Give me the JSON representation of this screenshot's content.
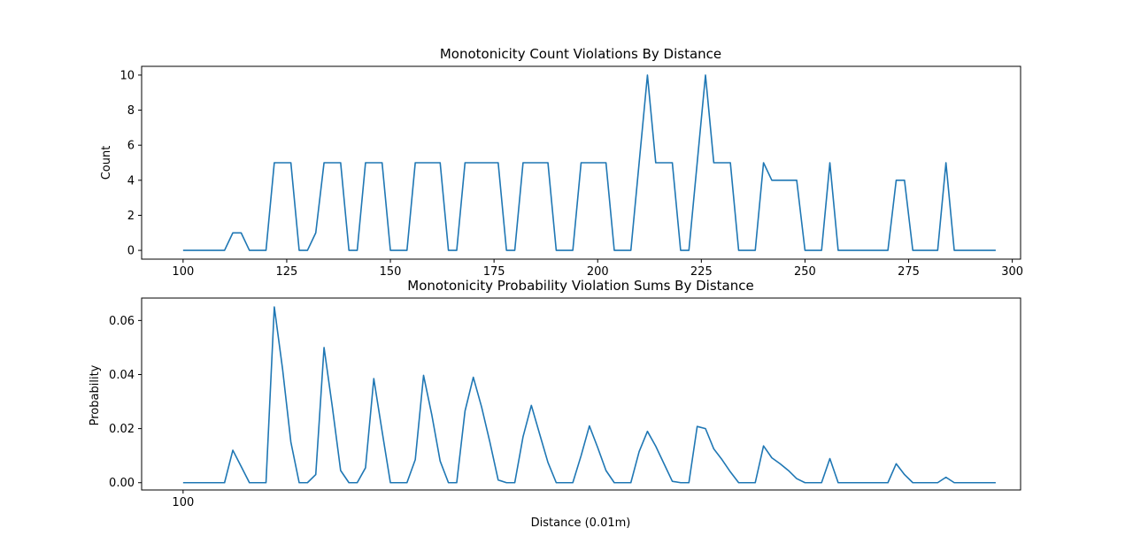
{
  "chart_data": [
    {
      "type": "line",
      "title": "Monotonicity Count Violations By Distance",
      "xlabel": "",
      "ylabel": "Count",
      "xlim": [
        90,
        302
      ],
      "ylim": [
        -0.5,
        10.5
      ],
      "xticks": [
        100,
        125,
        150,
        175,
        200,
        225,
        250,
        275,
        300
      ],
      "yticks": [
        0,
        2,
        4,
        6,
        8,
        10
      ],
      "ytick_labels": [
        "0",
        "2",
        "4",
        "6",
        "8",
        "10"
      ],
      "color": "#1f77b4",
      "series": [
        {
          "x": [
            100,
            102,
            104,
            106,
            108,
            110,
            112,
            114,
            116,
            118,
            120,
            122,
            124,
            126,
            128,
            130,
            132,
            134,
            136,
            138,
            140,
            142,
            144,
            146,
            148,
            150,
            152,
            154,
            156,
            158,
            160,
            162,
            164,
            166,
            168,
            170,
            172,
            174,
            176,
            178,
            180,
            182,
            184,
            186,
            188,
            190,
            192,
            194,
            196,
            198,
            200,
            202,
            204,
            206,
            208,
            210,
            212,
            214,
            216,
            218,
            220,
            222,
            224,
            226,
            228,
            230,
            232,
            234,
            236,
            238,
            240,
            242,
            244,
            246,
            248,
            250,
            252,
            254,
            256,
            258,
            260,
            262,
            264,
            266,
            268,
            270,
            272,
            274,
            276,
            278,
            280,
            282,
            284,
            286,
            288,
            290,
            292,
            294,
            296
          ],
          "y": [
            0,
            0,
            0,
            0,
            0,
            0,
            1,
            1,
            0,
            0,
            0,
            5,
            5,
            5,
            0,
            0,
            1,
            5,
            5,
            5,
            0,
            0,
            5,
            5,
            5,
            0,
            0,
            0,
            5,
            5,
            5,
            5,
            0,
            0,
            5,
            5,
            5,
            5,
            5,
            0,
            0,
            5,
            5,
            5,
            5,
            0,
            0,
            0,
            5,
            5,
            5,
            5,
            0,
            0,
            0,
            5,
            10,
            5,
            5,
            5,
            0,
            0,
            5,
            10,
            5,
            5,
            5,
            0,
            0,
            0,
            5,
            4,
            4,
            4,
            4,
            0,
            0,
            0,
            5,
            0,
            0,
            0,
            0,
            0,
            0,
            0,
            4,
            4,
            0,
            0,
            0,
            0,
            5,
            0,
            0,
            0,
            0,
            0,
            0
          ]
        }
      ]
    },
    {
      "type": "line",
      "title": "Monotonicity Probability Violation Sums By Distance",
      "xlabel": "Distance (0.01m)",
      "ylabel": "Probability",
      "xlim": [
        90,
        302
      ],
      "ylim": [
        -0.0027,
        0.0683
      ],
      "xticks": [
        100
      ],
      "yticks": [
        0.0,
        0.02,
        0.04,
        0.06
      ],
      "ytick_labels": [
        "0.00",
        "0.02",
        "0.04",
        "0.06"
      ],
      "color": "#1f77b4",
      "series": [
        {
          "x": [
            100,
            102,
            104,
            106,
            108,
            110,
            112,
            114,
            116,
            118,
            120,
            122,
            124,
            126,
            128,
            130,
            132,
            134,
            136,
            138,
            140,
            142,
            144,
            146,
            148,
            150,
            152,
            154,
            156,
            158,
            160,
            162,
            164,
            166,
            168,
            170,
            172,
            174,
            176,
            178,
            180,
            182,
            184,
            186,
            188,
            190,
            192,
            194,
            196,
            198,
            200,
            202,
            204,
            206,
            208,
            210,
            212,
            214,
            216,
            218,
            220,
            222,
            224,
            226,
            228,
            230,
            232,
            234,
            236,
            238,
            240,
            242,
            244,
            246,
            248,
            250,
            252,
            254,
            256,
            258,
            260,
            262,
            264,
            266,
            268,
            270,
            272,
            274,
            276,
            278,
            280,
            282,
            284,
            286,
            288,
            290,
            292,
            294,
            296
          ],
          "y": [
            0,
            0,
            0,
            0,
            0,
            0,
            0.012,
            0.006,
            0,
            0,
            0,
            0.065,
            0.042,
            0.015,
            0,
            0,
            0.003,
            0.05,
            0.028,
            0.0045,
            0,
            0,
            0.0055,
            0.0385,
            0.019,
            0,
            0,
            0,
            0.0085,
            0.0397,
            0.025,
            0.008,
            0,
            0,
            0.0265,
            0.039,
            0.028,
            0.015,
            0.001,
            0,
            0,
            0.017,
            0.0286,
            0.018,
            0.0075,
            0,
            0,
            0,
            0.01,
            0.021,
            0.013,
            0.0045,
            0,
            0,
            0,
            0.0115,
            0.019,
            0.0135,
            0.007,
            0.0005,
            0,
            0,
            0.0208,
            0.02,
            0.0125,
            0.0085,
            0.004,
            0,
            0,
            0,
            0.0136,
            0.0092,
            0.007,
            0.0045,
            0.0015,
            0,
            0,
            0,
            0.0089,
            0,
            0,
            0,
            0,
            0,
            0,
            0,
            0.007,
            0.003,
            0,
            0,
            0,
            0,
            0.002,
            0,
            0,
            0,
            0,
            0,
            0
          ]
        }
      ]
    }
  ]
}
